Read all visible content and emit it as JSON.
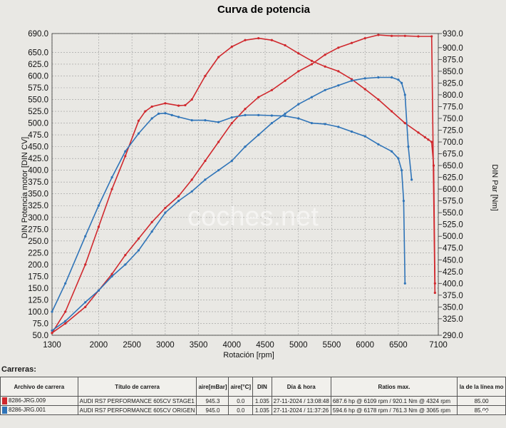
{
  "chart_data": {
    "type": "line",
    "title": "Curva de potencia",
    "xlabel": "Rotación [rpm]",
    "ylabel_left": "DIN Potencia motor [DIN CV]",
    "ylabel_right": "DIN Par [Nm]",
    "xlim": [
      1300,
      7100
    ],
    "ylim_left": [
      50,
      690
    ],
    "ylim_right": [
      290,
      930
    ],
    "x_tick_labels": [
      "1300",
      "2000",
      "2500",
      "3000",
      "3500",
      "4000",
      "4500",
      "5000",
      "5500",
      "6000",
      "6500",
      "7100"
    ],
    "x_ticks": [
      1300,
      2000,
      2500,
      3000,
      3500,
      4000,
      4500,
      5000,
      5500,
      6000,
      6500,
      7100
    ],
    "y_left_tick_labels": [
      "50.0",
      "75.0",
      "100.0",
      "125.0",
      "150.0",
      "175.0",
      "200.0",
      "225.0",
      "250.0",
      "275.0",
      "300.0",
      "325.0",
      "350.0",
      "375.0",
      "400.0",
      "425.0",
      "450.0",
      "475.0",
      "500.0",
      "525.0",
      "550.0",
      "575.0",
      "600.0",
      "625.0",
      "650.0",
      "690.0"
    ],
    "y_left_ticks": [
      50,
      75,
      100,
      125,
      150,
      175,
      200,
      225,
      250,
      275,
      300,
      325,
      350,
      375,
      400,
      425,
      450,
      475,
      500,
      525,
      550,
      575,
      600,
      625,
      650,
      690
    ],
    "y_right_tick_labels": [
      "290.0",
      "325.0",
      "350.0",
      "375.0",
      "400.0",
      "425.0",
      "450.0",
      "475.0",
      "500.0",
      "525.0",
      "550.0",
      "575.0",
      "600.0",
      "625.0",
      "650.0",
      "675.0",
      "700.0",
      "725.0",
      "750.0",
      "775.0",
      "800.0",
      "825.0",
      "850.0",
      "875.0",
      "900.0",
      "930.0"
    ],
    "y_right_ticks": [
      290,
      325,
      350,
      375,
      400,
      425,
      450,
      475,
      500,
      525,
      550,
      575,
      600,
      625,
      650,
      675,
      700,
      725,
      750,
      775,
      800,
      825,
      850,
      875,
      900,
      930
    ],
    "grid": true,
    "series": [
      {
        "color": "#d0282d",
        "axis": "left",
        "x": [
          1300,
          1500,
          1800,
          2000,
          2200,
          2400,
          2600,
          2800,
          3000,
          3200,
          3400,
          3600,
          3800,
          4000,
          4200,
          4400,
          4600,
          4800,
          5000,
          5200,
          5400,
          5600,
          5800,
          6000,
          6200,
          6400,
          6600,
          6800,
          7000,
          7050
        ],
        "y": [
          55,
          75,
          110,
          145,
          180,
          220,
          255,
          290,
          320,
          345,
          380,
          420,
          460,
          500,
          530,
          555,
          570,
          590,
          610,
          625,
          645,
          660,
          670,
          680,
          687,
          685,
          685,
          684,
          684,
          140
        ]
      },
      {
        "color": "#d0282d",
        "axis": "right",
        "x": [
          1300,
          1500,
          1800,
          2000,
          2200,
          2400,
          2600,
          2700,
          2800,
          3000,
          3200,
          3300,
          3400,
          3600,
          3800,
          4000,
          4200,
          4400,
          4600,
          4800,
          5000,
          5200,
          5400,
          5600,
          5800,
          6000,
          6200,
          6400,
          6600,
          6800,
          6900,
          6950,
          7000,
          7030,
          7050
        ],
        "y": [
          295,
          340,
          440,
          520,
          600,
          670,
          745,
          765,
          775,
          782,
          777,
          778,
          790,
          840,
          880,
          902,
          916,
          920,
          916,
          905,
          888,
          872,
          860,
          850,
          833,
          812,
          790,
          765,
          740,
          720,
          710,
          705,
          700,
          650,
          400
        ]
      },
      {
        "color": "#2f74b8",
        "axis": "left",
        "x": [
          1300,
          1500,
          1800,
          2000,
          2200,
          2400,
          2600,
          2800,
          3000,
          3200,
          3400,
          3600,
          3800,
          4000,
          4200,
          4400,
          4600,
          4800,
          5000,
          5200,
          5400,
          5600,
          5800,
          6000,
          6200,
          6400,
          6500,
          6550,
          6600,
          6650,
          6700
        ],
        "y": [
          60,
          80,
          120,
          145,
          175,
          200,
          230,
          270,
          310,
          335,
          355,
          380,
          400,
          420,
          450,
          475,
          500,
          520,
          540,
          555,
          570,
          580,
          590,
          595,
          597,
          597,
          592,
          585,
          560,
          450,
          380
        ]
      },
      {
        "color": "#2f74b8",
        "axis": "right",
        "x": [
          1300,
          1500,
          1800,
          2000,
          2200,
          2400,
          2600,
          2800,
          2900,
          3000,
          3100,
          3200,
          3400,
          3600,
          3800,
          4000,
          4200,
          4400,
          4600,
          4800,
          5000,
          5200,
          5400,
          5600,
          5800,
          6000,
          6200,
          6400,
          6500,
          6550,
          6580,
          6600
        ],
        "y": [
          340,
          400,
          500,
          565,
          625,
          680,
          718,
          750,
          760,
          761,
          757,
          753,
          746,
          746,
          742,
          752,
          757,
          757,
          756,
          755,
          750,
          740,
          738,
          732,
          722,
          712,
          695,
          680,
          665,
          640,
          575,
          400
        ]
      }
    ],
    "watermark": "coches.net",
    "brand_mark": "C."
  },
  "runs": {
    "heading": "Carreras:",
    "columns": [
      "Archivo de carrera",
      "Título de carrera",
      "aire[mBar]",
      "aire[°C]",
      "DIN",
      "Día & hora",
      "Ratios max.",
      "la de la línea mo"
    ],
    "rows": [
      {
        "color": "#d0282d",
        "file": "8286-JRG.009",
        "title": "AUDI RS7 PERFORMANCE 605CV STAGE1",
        "pressure": "945.3",
        "temp": "0.0",
        "din": "1.035",
        "datetime": "27-11-2024 / 13:08:48",
        "ratios": "687.6 hp @ 6109 rpm / 920.1 Nm @ 4324 rpm",
        "line": "85.00"
      },
      {
        "color": "#2f74b8",
        "file": "8286-JRG.001",
        "title": "AUDI RS7 PERFORMANCE 605CV ORIGEN",
        "pressure": "945.0",
        "temp": "0.0",
        "din": "1.035",
        "datetime": "27-11-2024 / 11:37:26",
        "ratios": "594.6 hp @ 6178 rpm / 761.3 Nm @ 3065 rpm",
        "line": "85.00"
      }
    ]
  }
}
